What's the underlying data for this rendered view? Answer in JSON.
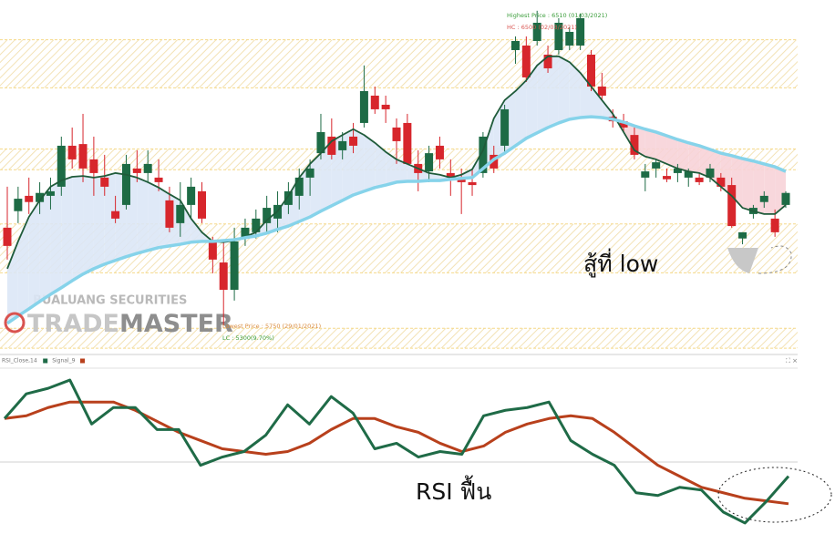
{
  "chart_data": [
    {
      "type": "candlestick",
      "ylim": [
        5682,
        6536
      ],
      "up_color": "#1d6b45",
      "down_color": "#d7262c",
      "zones": [
        [
          5695,
          5743
        ],
        [
          5877,
          5995
        ],
        [
          6126,
          6176
        ],
        [
          6324,
          6440
        ]
      ],
      "zone_color": "#f5d98a",
      "open": [
        5986,
        6026,
        6063,
        6048,
        6063,
        6085,
        6184,
        6188,
        6151,
        6107,
        6026,
        6041,
        6129,
        6118,
        6107,
        6052,
        5997,
        6041,
        6074,
        5953,
        5902,
        5836,
        5960,
        5975,
        5997,
        6008,
        6041,
        6063,
        6107,
        6166,
        6206,
        6173,
        6206,
        6239,
        6305,
        6283,
        6228,
        6239,
        6140,
        6122,
        6184,
        6118,
        6107,
        6096,
        6118,
        6162,
        6184,
        6415,
        6426,
        6437,
        6404,
        6415,
        6426,
        6426,
        6404,
        6327,
        6254,
        6243,
        6210,
        6107,
        6129,
        6111,
        6118,
        6107,
        6107,
        6107,
        6107,
        6089,
        5960,
        6019,
        6048,
        6008,
        6041
      ],
      "high": [
        6085,
        6085,
        6107,
        6096,
        6107,
        6206,
        6228,
        6261,
        6206,
        6162,
        6063,
        6162,
        6173,
        6173,
        6151,
        6085,
        6096,
        6107,
        6096,
        5964,
        5953,
        5986,
        6008,
        6030,
        6063,
        6074,
        6096,
        6129,
        6151,
        6261,
        6250,
        6217,
        6239,
        6378,
        6327,
        6305,
        6250,
        6261,
        6173,
        6184,
        6206,
        6151,
        6129,
        6129,
        6217,
        6184,
        6283,
        6448,
        6448,
        6510,
        6426,
        6492,
        6470,
        6503,
        6415,
        6360,
        6272,
        6261,
        6228,
        6140,
        6151,
        6129,
        6140,
        6129,
        6118,
        6140,
        6118,
        6107,
        5975,
        6041,
        6074,
        6030,
        6074
      ],
      "low": [
        5909,
        5997,
        6019,
        6019,
        6030,
        6063,
        6129,
        6096,
        6063,
        6063,
        5997,
        6030,
        6096,
        6096,
        6074,
        5975,
        5964,
        6008,
        5997,
        5876,
        5750,
        5810,
        5942,
        5960,
        5975,
        5975,
        6019,
        6030,
        6063,
        6151,
        6151,
        6151,
        6166,
        6228,
        6261,
        6239,
        6140,
        6140,
        6074,
        6096,
        6129,
        6063,
        6019,
        6063,
        6107,
        6118,
        6162,
        6382,
        6338,
        6426,
        6360,
        6404,
        6415,
        6415,
        6316,
        6294,
        6228,
        6217,
        6151,
        6074,
        6107,
        6096,
        6096,
        6085,
        6089,
        6096,
        6074,
        5986,
        5946,
        6008,
        6034,
        5964,
        6034
      ],
      "close": [
        5942,
        6056,
        6048,
        6070,
        6074,
        6184,
        6151,
        6129,
        6118,
        6085,
        6008,
        6140,
        6118,
        6140,
        6096,
        5986,
        6041,
        6085,
        6008,
        5909,
        5836,
        5953,
        5986,
        6008,
        6034,
        6041,
        6074,
        6107,
        6129,
        6217,
        6162,
        6195,
        6184,
        6316,
        6272,
        6272,
        6195,
        6140,
        6118,
        6166,
        6151,
        6107,
        6096,
        6089,
        6206,
        6129,
        6272,
        6437,
        6349,
        6481,
        6371,
        6481,
        6459,
        6492,
        6327,
        6305,
        6243,
        6228,
        6162,
        6122,
        6144,
        6103,
        6129,
        6122,
        6096,
        6129,
        6085,
        5990,
        5975,
        6034,
        6063,
        5975,
        6070
      ],
      "overlays": [
        {
          "color": "#1f5b3a",
          "values": [
            5887,
            5953,
            6012,
            6052,
            6085,
            6100,
            6109,
            6111,
            6107,
            6111,
            6118,
            6114,
            6107,
            6096,
            6083,
            6067,
            6052,
            6008,
            5975,
            5953,
            5951,
            5955,
            5964,
            5975,
            6004,
            6026,
            6063,
            6107,
            6140,
            6166,
            6195,
            6210,
            6224,
            6210,
            6191,
            6169,
            6151,
            6140,
            6129,
            6118,
            6114,
            6107,
            6114,
            6127,
            6173,
            6250,
            6294,
            6316,
            6342,
            6378,
            6400,
            6400,
            6386,
            6360,
            6327,
            6294,
            6261,
            6217,
            6173,
            6158,
            6151,
            6140,
            6129,
            6122,
            6118,
            6107,
            6085,
            6063,
            6034,
            6026,
            6019,
            6019,
            6041
          ]
        },
        {
          "color": "#86d3ea",
          "values": [
            5755,
            5773,
            5790,
            5808,
            5825,
            5841,
            5858,
            5874,
            5887,
            5898,
            5907,
            5916,
            5924,
            5931,
            5938,
            5942,
            5946,
            5951,
            5953,
            5953,
            5955,
            5957,
            5962,
            5966,
            5973,
            5982,
            5990,
            6001,
            6012,
            6026,
            6039,
            6052,
            6065,
            6074,
            6083,
            6089,
            6096,
            6098,
            6098,
            6100,
            6100,
            6103,
            6105,
            6107,
            6129,
            6151,
            6166,
            6184,
            6202,
            6215,
            6228,
            6239,
            6248,
            6252,
            6254,
            6252,
            6248,
            6241,
            6232,
            6224,
            6217,
            6208,
            6199,
            6191,
            6184,
            6175,
            6166,
            6160,
            6153,
            6147,
            6140,
            6133,
            6122
          ]
        }
      ],
      "fill_up_color": "#dce7f6",
      "fill_down_color": "#f7d3d8",
      "high_labels": [
        "Highest Price : 6510 (01/03/2021)",
        "HC : 6500 (02/03/2021)"
      ],
      "low_labels": [
        "Lowest Price : 5750 (29/01/2021)",
        "LC : 5300(9.70%)"
      ],
      "watermark": [
        "BUALUANG SECURITIES",
        "TRADE",
        "MASTER"
      ],
      "annotation": "สู้ที่ low"
    },
    {
      "type": "line",
      "ylim": [
        20,
        80
      ],
      "series": [
        {
          "name": "RSI_Close,14",
          "color": "#1f6b47",
          "values": [
            62,
            71,
            73,
            76,
            60,
            66,
            66,
            58,
            58,
            45,
            48,
            50,
            56,
            67,
            60,
            70,
            64,
            51,
            53,
            48,
            50,
            49,
            63,
            65,
            66,
            68,
            54,
            49,
            45,
            35,
            34,
            37,
            36,
            28,
            24,
            32,
            41
          ]
        },
        {
          "name": "Signal_9",
          "color": "#b8401c",
          "values": [
            62,
            63,
            66,
            68,
            68,
            68,
            65,
            61,
            57,
            54,
            51,
            50,
            49,
            50,
            53,
            58,
            62,
            62,
            59,
            57,
            53,
            50,
            52,
            57,
            60,
            62,
            63,
            62,
            57,
            51,
            45,
            41,
            37,
            35,
            33,
            32,
            31
          ]
        }
      ],
      "annotation": "RSI ฟื้น"
    }
  ]
}
